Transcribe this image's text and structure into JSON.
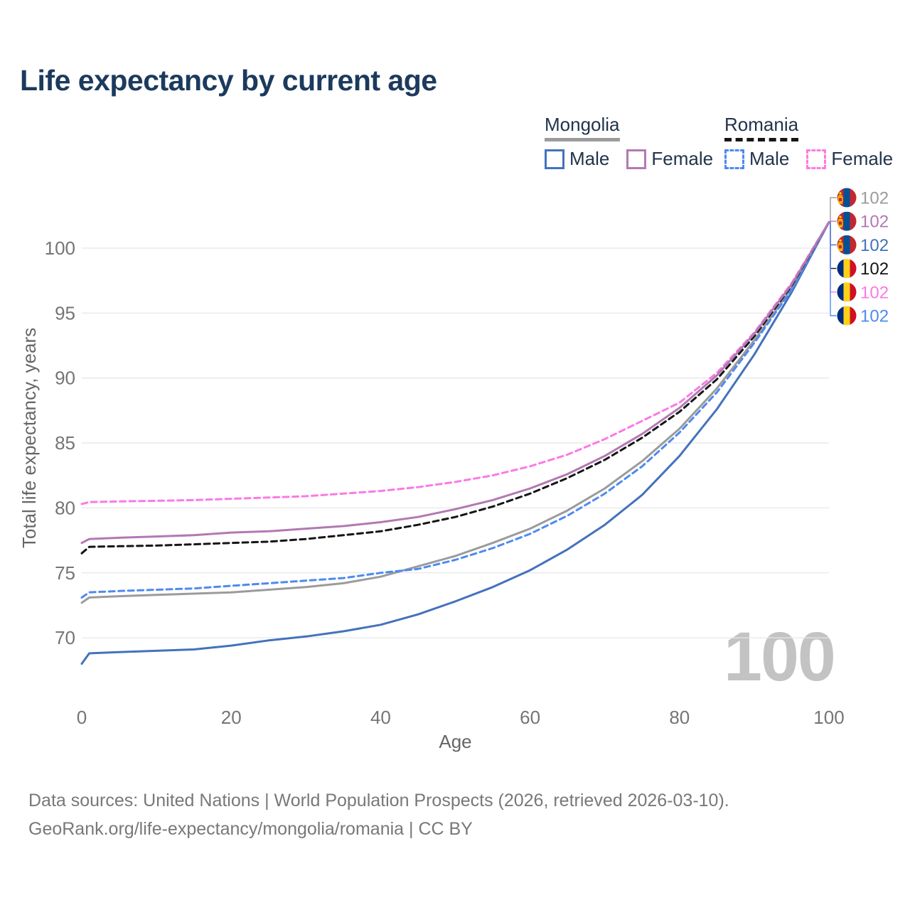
{
  "title": "Life expectancy by current age",
  "legend": {
    "groups": [
      {
        "id": "mongolia",
        "label": "Mongolia",
        "line_style": "solid",
        "underline_color": "#9b9b9b",
        "items": [
          {
            "label": "Male",
            "color": "#4472bc"
          },
          {
            "label": "Female",
            "color": "#b279b2"
          }
        ]
      },
      {
        "id": "romania",
        "label": "Romania",
        "line_style": "dashed",
        "underline_color": "#151515",
        "items": [
          {
            "label": "Male",
            "color": "#4e8af0"
          },
          {
            "label": "Female",
            "color": "#fb7ae4"
          }
        ]
      }
    ]
  },
  "chart_data": {
    "type": "line",
    "title": "Life expectancy by current age",
    "xlabel": "Age",
    "ylabel": "Total life expectancy, years",
    "xlim": [
      0,
      100
    ],
    "ylim": [
      67,
      103
    ],
    "x_ticks": [
      0,
      20,
      40,
      60,
      80,
      100
    ],
    "y_ticks": [
      70,
      75,
      80,
      85,
      90,
      95,
      100
    ],
    "grid": "horizontal",
    "legend_position": "top-right",
    "ages": [
      0,
      1,
      5,
      10,
      15,
      20,
      25,
      30,
      35,
      40,
      45,
      50,
      55,
      60,
      65,
      70,
      75,
      80,
      85,
      90,
      95,
      100
    ],
    "series": [
      {
        "name": "Mongolia Male",
        "country": "Mongolia",
        "sex": "Male",
        "color": "#4472bc",
        "dash": false,
        "values": [
          68.0,
          68.8,
          68.9,
          69.0,
          69.1,
          69.4,
          69.8,
          70.1,
          70.5,
          71.0,
          71.8,
          72.8,
          73.9,
          75.2,
          76.8,
          78.7,
          81.0,
          84.0,
          87.6,
          91.8,
          96.6,
          102.0
        ]
      },
      {
        "name": "Mongolia Total",
        "country": "Mongolia",
        "sex": "Both",
        "color": "#9b9b9b",
        "dash": false,
        "values": [
          72.7,
          73.1,
          73.2,
          73.3,
          73.4,
          73.5,
          73.7,
          73.9,
          74.2,
          74.7,
          75.5,
          76.3,
          77.3,
          78.4,
          79.8,
          81.5,
          83.6,
          86.1,
          89.2,
          92.9,
          96.9,
          102.0
        ]
      },
      {
        "name": "Romania Male",
        "country": "Romania",
        "sex": "Male",
        "color": "#4e8af0",
        "dash": true,
        "values": [
          73.1,
          73.5,
          73.6,
          73.7,
          73.8,
          74.0,
          74.2,
          74.4,
          74.6,
          75.0,
          75.3,
          76.0,
          76.9,
          78.0,
          79.4,
          81.1,
          83.2,
          85.8,
          88.9,
          92.7,
          96.8,
          102.0
        ]
      },
      {
        "name": "Romania Total",
        "country": "Romania",
        "sex": "Both",
        "color": "#151515",
        "dash": true,
        "values": [
          76.5,
          77.0,
          77.05,
          77.1,
          77.2,
          77.3,
          77.4,
          77.6,
          77.9,
          78.2,
          78.7,
          79.3,
          80.1,
          81.1,
          82.3,
          83.7,
          85.4,
          87.4,
          89.9,
          93.2,
          97.1,
          102.0
        ]
      },
      {
        "name": "Romania Female",
        "country": "Romania",
        "sex": "Female",
        "color": "#fb7ae4",
        "dash": true,
        "values": [
          80.3,
          80.45,
          80.5,
          80.55,
          80.6,
          80.7,
          80.8,
          80.9,
          81.1,
          81.3,
          81.6,
          82.0,
          82.5,
          83.2,
          84.1,
          85.3,
          86.7,
          88.1,
          90.4,
          93.5,
          97.3,
          102.0
        ]
      },
      {
        "name": "Mongolia Female",
        "country": "Mongolia",
        "sex": "Female",
        "color": "#b279b2",
        "dash": false,
        "values": [
          77.3,
          77.6,
          77.7,
          77.8,
          77.9,
          78.1,
          78.2,
          78.4,
          78.6,
          78.9,
          79.3,
          79.9,
          80.6,
          81.5,
          82.6,
          84.0,
          85.7,
          87.7,
          90.2,
          93.4,
          97.2,
          102.0
        ]
      }
    ],
    "end_labels": [
      {
        "value": "102",
        "flag": "mongolia",
        "color": "#9b9b9b",
        "series": "Mongolia Total"
      },
      {
        "value": "102",
        "flag": "mongolia",
        "color": "#b279b2",
        "series": "Mongolia Female"
      },
      {
        "value": "102",
        "flag": "mongolia",
        "color": "#4472bc",
        "series": "Mongolia Male"
      },
      {
        "value": "102",
        "flag": "romania",
        "color": "#151515",
        "series": "Romania Total"
      },
      {
        "value": "102",
        "flag": "romania",
        "color": "#fb7ae4",
        "series": "Romania Female"
      },
      {
        "value": "102",
        "flag": "romania",
        "color": "#4e8af0",
        "series": "Romania Male"
      }
    ],
    "watermark": "100",
    "flags": {
      "mongolia": {
        "stripes": [
          "#c4272f",
          "#015197",
          "#c4272f"
        ],
        "soyombo": "#f9cf02"
      },
      "romania": {
        "stripes": [
          "#002b7f",
          "#fcd116",
          "#ce1126"
        ]
      }
    },
    "colors": {
      "grid": "#e7e7e7",
      "tick_text": "#757575",
      "axis_label_text": "#666666",
      "title_text": "#1c3a5e",
      "watermark_text": "#c3c3c3"
    }
  },
  "footer": {
    "line1": "Data sources: United Nations | World Population Prospects (2026, retrieved 2026-03-10).",
    "line2": "GeoRank.org/life-expectancy/mongolia/romania | CC BY"
  }
}
